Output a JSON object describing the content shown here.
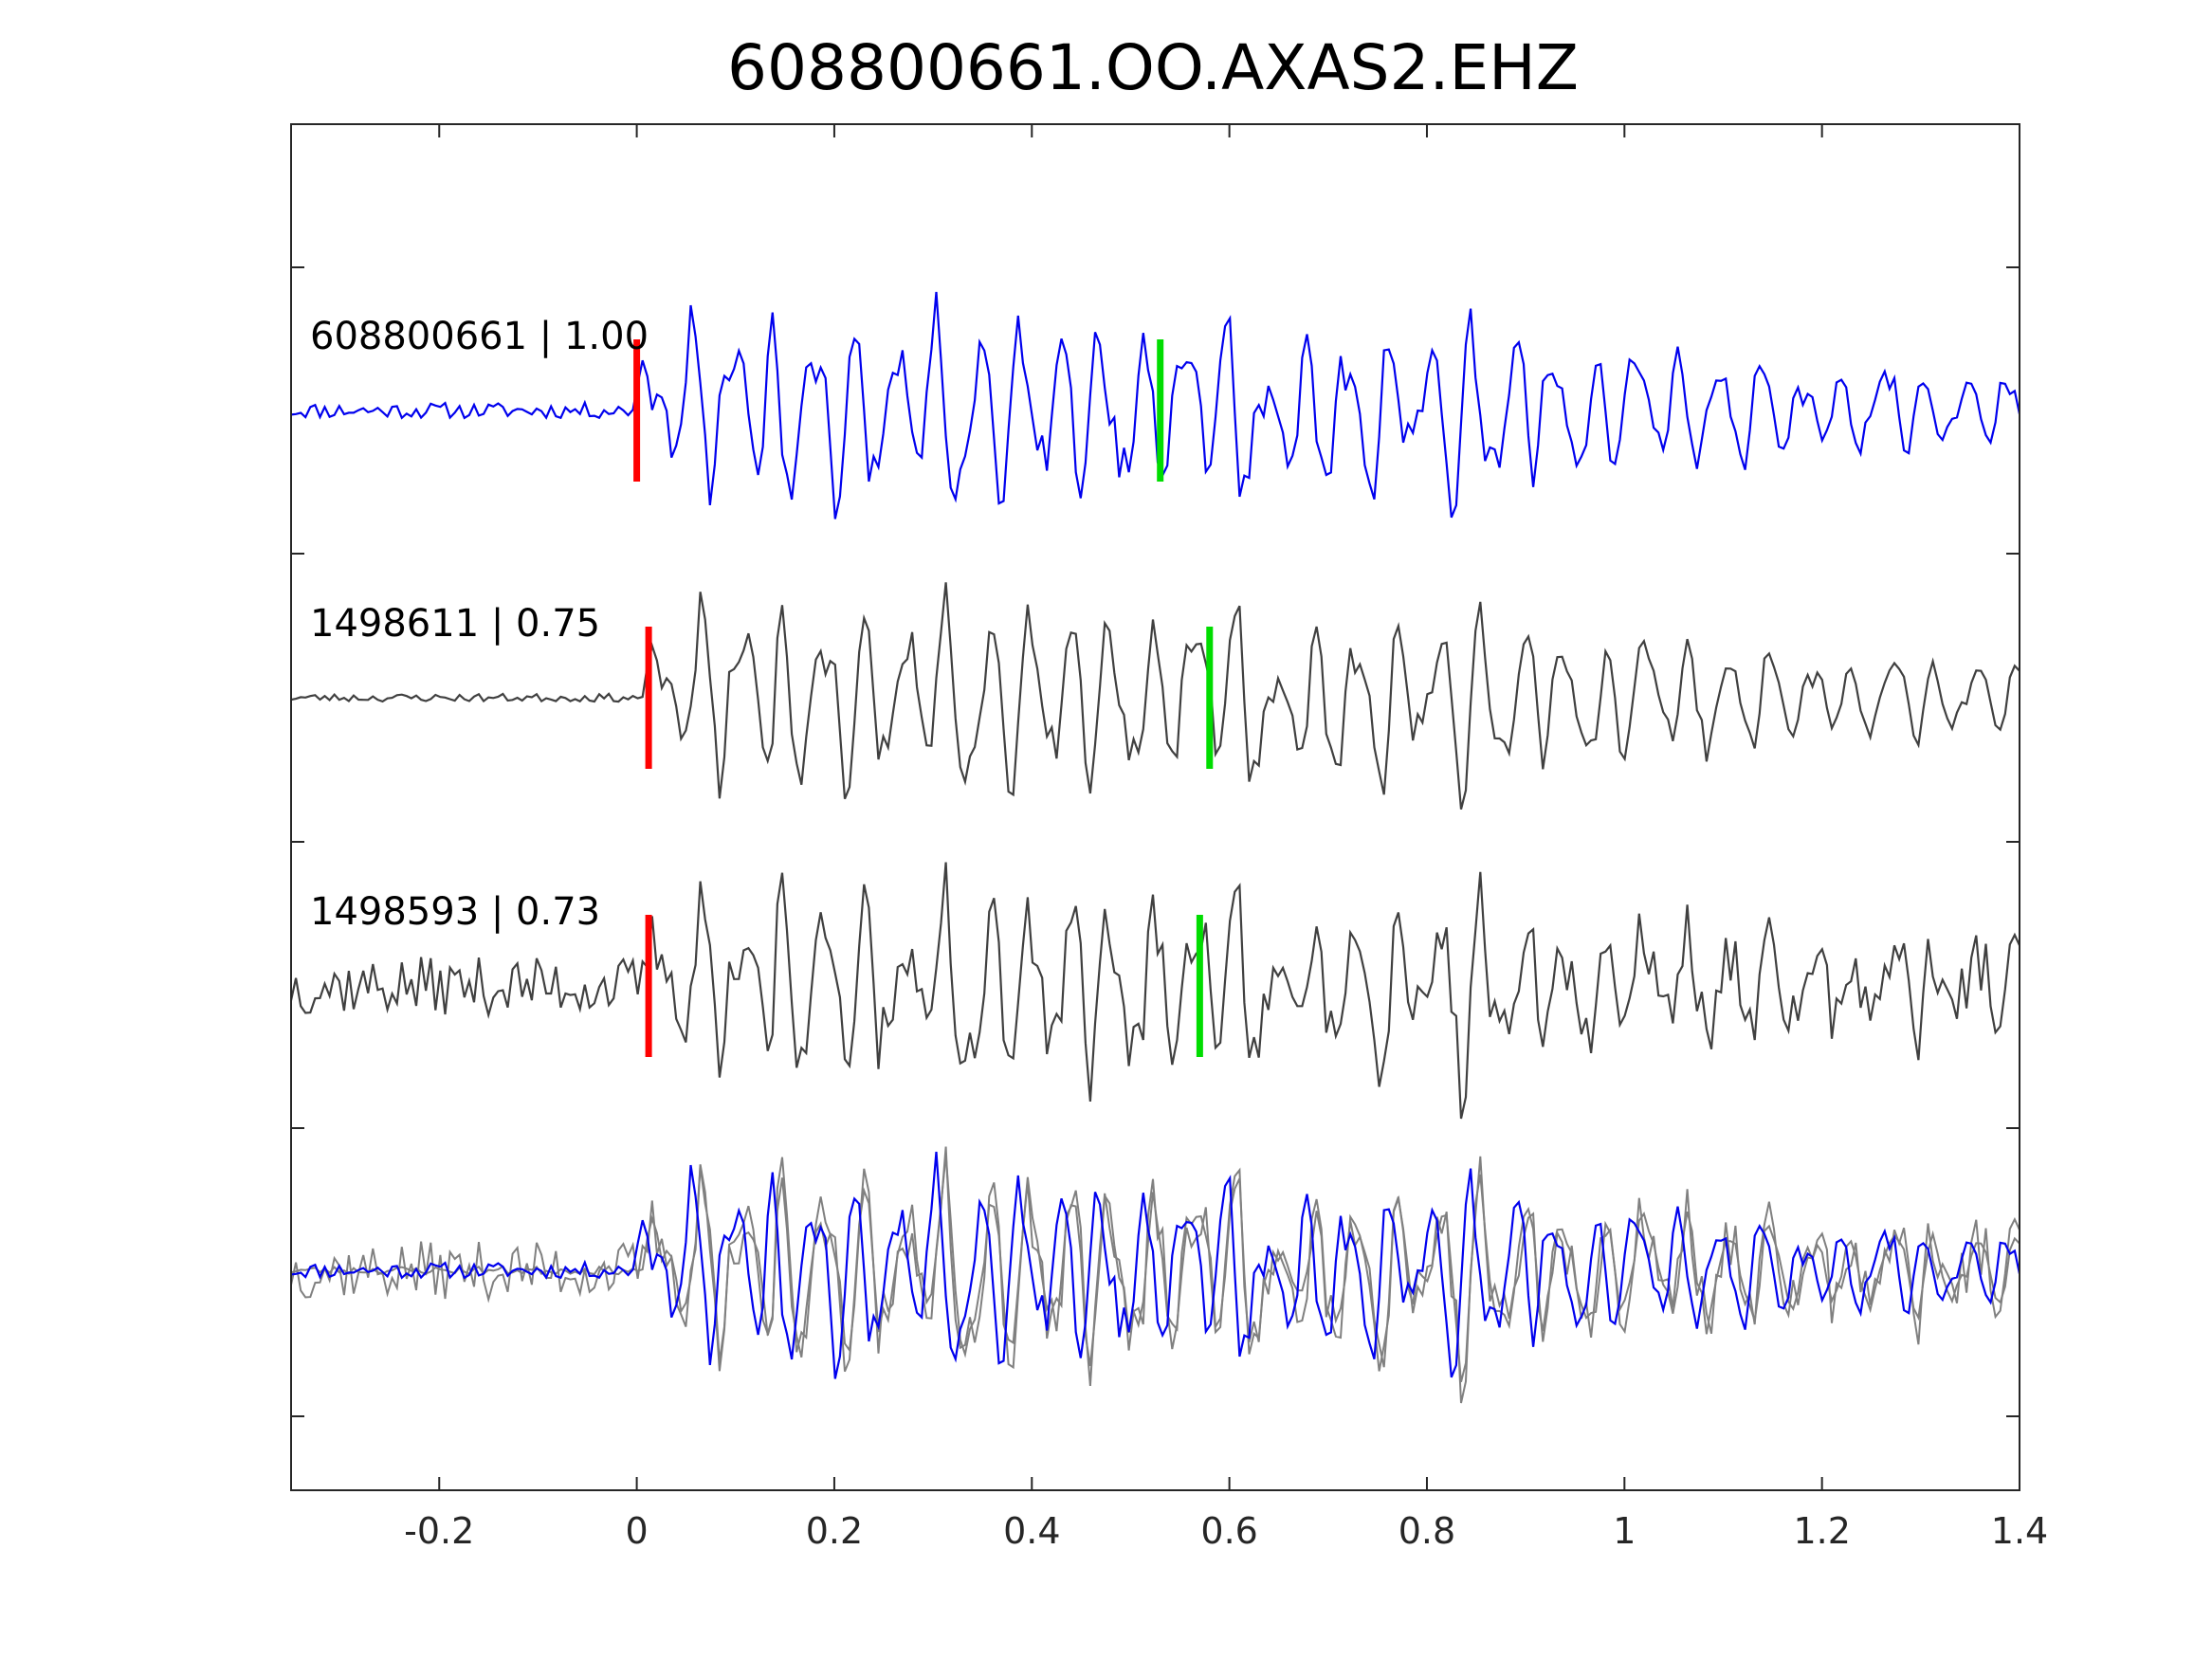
{
  "chart_data": {
    "type": "line",
    "title": "608800661.OO.AXAS2.EHZ",
    "xlabel": "",
    "ylabel": "",
    "xlim": [
      -0.35,
      1.4
    ],
    "xticks": [
      -0.2,
      0,
      0.2,
      0.4,
      0.6,
      0.8,
      1,
      1.2,
      1.4
    ],
    "xtick_labels": [
      "-0.2",
      "0",
      "0.2",
      "0.4",
      "0.6",
      "0.8",
      "1",
      "1.2",
      "1.4"
    ],
    "grid": false,
    "colors": {
      "master": "#0000ee",
      "neighbor": "#404040",
      "overlay_neighbor": "#808080",
      "p_pick": "#ff0000",
      "s_pick": "#00dd00",
      "axes": "#262626"
    },
    "traces": [
      {
        "label": "608800661 | 1.00",
        "event_id": "608800661",
        "cc": 1.0,
        "role": "master",
        "p_pick": 0.0,
        "s_pick": 0.53,
        "noise_level": 0.06,
        "seed": 11
      },
      {
        "label": "1498611 | 0.75",
        "event_id": "1498611",
        "cc": 0.75,
        "role": "neighbor",
        "p_pick": 0.012,
        "s_pick": 0.58,
        "noise_level": 0.03,
        "seed": 23
      },
      {
        "label": "1498593 | 0.73",
        "event_id": "1498593",
        "cc": 0.73,
        "role": "neighbor",
        "p_pick": 0.012,
        "s_pick": 0.57,
        "noise_level": 0.22,
        "seed": 37
      }
    ],
    "overlay": {
      "traces": [
        "608800661",
        "1498611",
        "1498593"
      ]
    }
  }
}
